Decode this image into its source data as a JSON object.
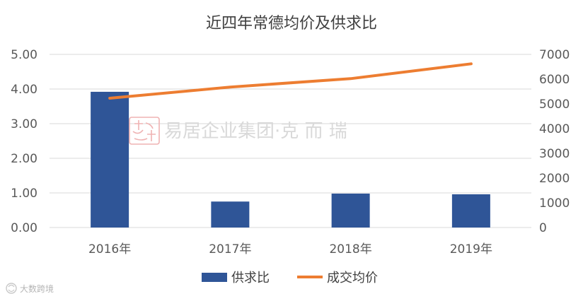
{
  "chart_data": {
    "type": "bar",
    "title": "近四年常德均价及供求比",
    "categories": [
      "2016年",
      "2017年",
      "2018年",
      "2019年"
    ],
    "series": [
      {
        "name": "供求比",
        "type": "bar",
        "axis": "left",
        "values": [
          3.92,
          0.75,
          0.98,
          0.96
        ]
      },
      {
        "name": "成交均价",
        "type": "line",
        "axis": "right",
        "values": [
          5230,
          5680,
          6020,
          6620
        ]
      }
    ],
    "y_left": {
      "min": 0,
      "max": 5,
      "step": 1,
      "tick_labels": [
        "0.00",
        "1.00",
        "2.00",
        "3.00",
        "4.00",
        "5.00"
      ]
    },
    "y_right": {
      "min": 0,
      "max": 7000,
      "step": 1000,
      "tick_labels": [
        "0",
        "1000",
        "2000",
        "3000",
        "4000",
        "5000",
        "6000",
        "7000"
      ]
    },
    "grid": true,
    "legend_position": "bottom",
    "colors": {
      "bar": "#2f5597",
      "line": "#ed7d31"
    }
  },
  "watermark": {
    "text": "易居企业集团·克 而 瑞"
  },
  "credit": {
    "text": "大数跨境"
  }
}
